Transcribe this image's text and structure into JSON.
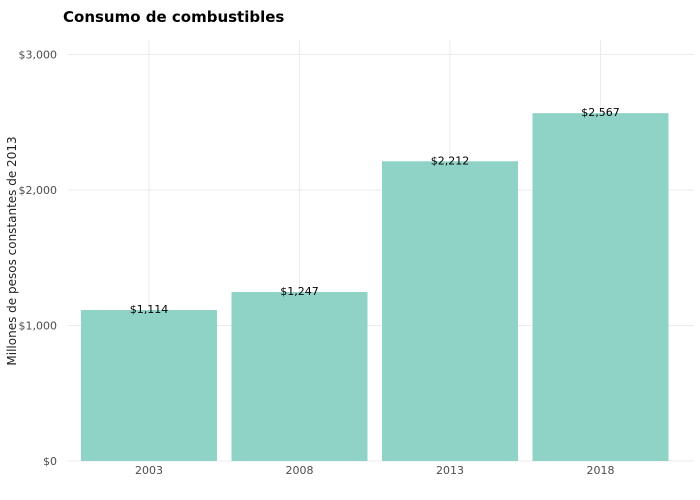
{
  "chart_data": {
    "type": "bar",
    "title": "Consumo de combustibles",
    "xlabel": "",
    "ylabel": "Millones de pesos constantes de 2013",
    "categories": [
      "2003",
      "2008",
      "2013",
      "2018"
    ],
    "values": [
      1114,
      1247,
      2212,
      2567
    ],
    "data_labels": [
      "$1,114",
      "$1,247",
      "$2,212",
      "$2,567"
    ],
    "ylim": [
      0,
      3000
    ],
    "y_ticks": [
      0,
      1000,
      2000,
      3000
    ],
    "y_tick_labels": [
      "$0",
      "$1,000",
      "$2,000",
      "$3,000"
    ],
    "grid": true,
    "legend": "none",
    "bar_color": "#8fd3c7"
  }
}
